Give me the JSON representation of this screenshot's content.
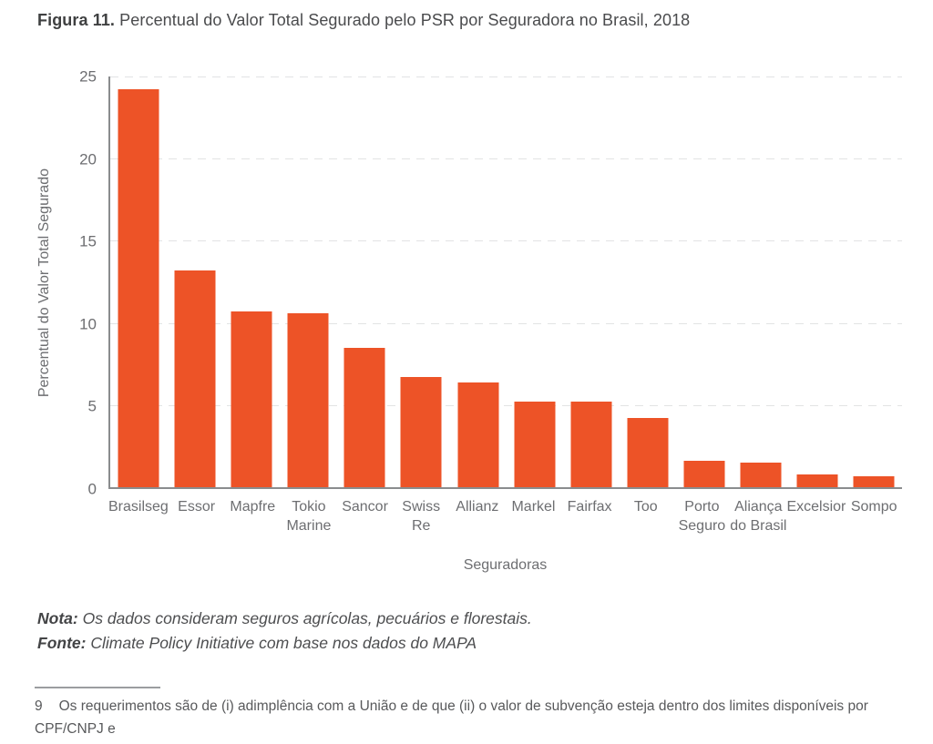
{
  "figure": {
    "label": "Figura 11.",
    "title": "Percentual do Valor Total Segurado pelo PSR por Seguradora no Brasil, 2018"
  },
  "chart_data": {
    "type": "bar",
    "title": "Percentual do Valor Total Segurado pelo PSR por Seguradora no Brasil, 2018",
    "categories": [
      "Brasilseg",
      "Essor",
      "Mapfre",
      "Tokio\nMarine",
      "Sancor",
      "Swiss\nRe",
      "Allianz",
      "Markel",
      "Fairfax",
      "Too",
      "Porto\nSeguro",
      "Aliança\ndo Brasil",
      "Excelsior",
      "Sompo"
    ],
    "values": [
      24.2,
      13.2,
      10.7,
      10.6,
      8.5,
      6.7,
      6.4,
      5.2,
      5.2,
      4.2,
      1.6,
      1.5,
      0.8,
      0.65
    ],
    "xlabel": "Seguradoras",
    "ylabel": "Percentual do Valor Total Segurado",
    "ylim": [
      0,
      25
    ],
    "yticks": [
      0,
      5,
      10,
      15,
      20,
      25
    ],
    "bar_color": "#ED5327",
    "grid": "horizontal-dashed",
    "legend": "none"
  },
  "notes": {
    "nota_label": "Nota:",
    "nota_text": "Os dados consideram seguros agrícolas, pecuários e florestais.",
    "fonte_label": "Fonte:",
    "fonte_text": "Climate Policy Initiative com base nos dados do MAPA"
  },
  "footnote": {
    "number": "9",
    "text": "Os requerimentos são de (i) adimplência com a União e de que (ii) o valor de subvenção esteja dentro dos limites disponíveis por CPF/CNPJ e\npara a cultura a ser contemplada."
  }
}
